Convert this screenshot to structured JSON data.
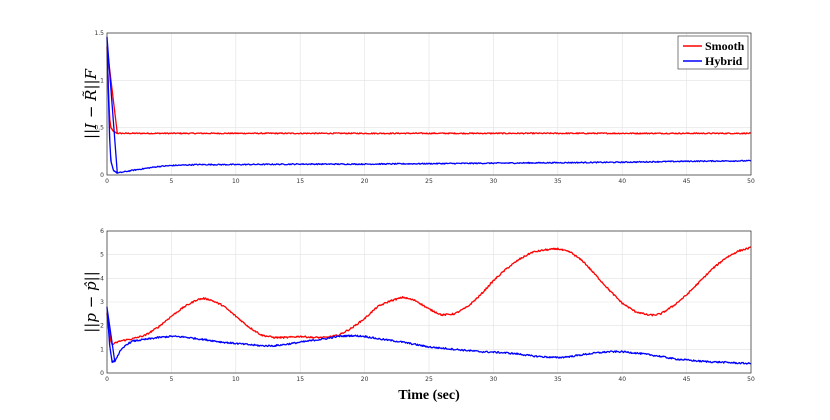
{
  "chart_data": [
    {
      "type": "line",
      "ylabel": "||I − R̃||F",
      "xlabel": "",
      "xlim": [
        0,
        50
      ],
      "ylim": [
        0,
        1.5
      ],
      "xticks": [
        "0",
        "5",
        "10",
        "15",
        "20",
        "25",
        "30",
        "35",
        "40",
        "45",
        "50"
      ],
      "yticks": [
        "0",
        "0.5",
        "1",
        "1.5"
      ],
      "grid": true,
      "legend_position": "top-right",
      "series": [
        {
          "name": "Smooth",
          "color": "#ff0000",
          "x": [
            0,
            0.1,
            0.2,
            0.3,
            0.5,
            0.8,
            1.5,
            3,
            5,
            10,
            15,
            20,
            25,
            30,
            35,
            40,
            45,
            50
          ],
          "y": [
            1.35,
            0.95,
            0.6,
            0.5,
            0.46,
            0.44,
            0.44,
            0.44,
            0.44,
            0.44,
            0.44,
            0.44,
            0.44,
            0.44,
            0.44,
            0.44,
            0.44,
            0.44
          ]
        },
        {
          "name": "Hybrid",
          "color": "#0000ff",
          "x": [
            0,
            0.1,
            0.2,
            0.3,
            0.5,
            0.8,
            1.2,
            2,
            3,
            4,
            5,
            7,
            10,
            15,
            20,
            25,
            30,
            35,
            40,
            45,
            50
          ],
          "y": [
            1.45,
            0.9,
            0.4,
            0.15,
            0.05,
            0.02,
            0.03,
            0.05,
            0.07,
            0.09,
            0.1,
            0.11,
            0.11,
            0.115,
            0.115,
            0.12,
            0.125,
            0.13,
            0.135,
            0.145,
            0.15
          ]
        }
      ]
    },
    {
      "type": "line",
      "ylabel": "||p − p̂||",
      "xlabel": "Time (sec)",
      "xlim": [
        0,
        50
      ],
      "ylim": [
        0,
        6
      ],
      "xticks": [
        "0",
        "5",
        "10",
        "15",
        "20",
        "25",
        "30",
        "35",
        "40",
        "45",
        "50"
      ],
      "yticks": [
        "0",
        "1",
        "2",
        "3",
        "4",
        "5",
        "6"
      ],
      "grid": true,
      "series": [
        {
          "name": "Smooth",
          "color": "#ff0000",
          "x": [
            0,
            0.2,
            0.4,
            1,
            2,
            3,
            4,
            5,
            6,
            7,
            7.5,
            8,
            9,
            10,
            11,
            12,
            13,
            14,
            15,
            16,
            17,
            18,
            19,
            20,
            21,
            22,
            23,
            24,
            25,
            26,
            27,
            28,
            29,
            30,
            31,
            32,
            33,
            34,
            35,
            36,
            37,
            38,
            39,
            40,
            41,
            42,
            42.5,
            43,
            44,
            45,
            46,
            47,
            48,
            49,
            50
          ],
          "y": [
            2.5,
            1.5,
            1.2,
            1.35,
            1.45,
            1.6,
            1.95,
            2.4,
            2.8,
            3.1,
            3.15,
            3.1,
            2.85,
            2.4,
            1.95,
            1.6,
            1.5,
            1.5,
            1.55,
            1.5,
            1.5,
            1.6,
            1.9,
            2.3,
            2.8,
            3.05,
            3.2,
            3.05,
            2.7,
            2.45,
            2.5,
            2.8,
            3.3,
            3.9,
            4.4,
            4.8,
            5.1,
            5.2,
            5.25,
            5.1,
            4.7,
            4.1,
            3.5,
            2.95,
            2.6,
            2.45,
            2.45,
            2.5,
            2.85,
            3.3,
            3.85,
            4.4,
            4.85,
            5.15,
            5.3
          ]
        },
        {
          "name": "Hybrid",
          "color": "#0000ff",
          "x": [
            0,
            0.2,
            0.4,
            0.6,
            1,
            1.5,
            2,
            3,
            4,
            5,
            6,
            7,
            8,
            9,
            10,
            11,
            12,
            13,
            14,
            15,
            16,
            17,
            18,
            19,
            20,
            21,
            22,
            23,
            24,
            25,
            26,
            27,
            28,
            29,
            30,
            31,
            32,
            33,
            34,
            35,
            36,
            37,
            38,
            39,
            40,
            41,
            42,
            43,
            44,
            45,
            46,
            47,
            48,
            49,
            50
          ],
          "y": [
            2.8,
            1.2,
            0.45,
            0.5,
            0.9,
            1.2,
            1.35,
            1.42,
            1.5,
            1.55,
            1.52,
            1.45,
            1.38,
            1.3,
            1.25,
            1.2,
            1.15,
            1.15,
            1.22,
            1.3,
            1.38,
            1.45,
            1.55,
            1.58,
            1.55,
            1.45,
            1.38,
            1.3,
            1.2,
            1.1,
            1.05,
            1.0,
            0.95,
            0.9,
            0.88,
            0.85,
            0.8,
            0.72,
            0.68,
            0.65,
            0.7,
            0.78,
            0.85,
            0.9,
            0.9,
            0.85,
            0.78,
            0.7,
            0.6,
            0.55,
            0.5,
            0.47,
            0.45,
            0.42,
            0.4
          ]
        }
      ]
    }
  ]
}
